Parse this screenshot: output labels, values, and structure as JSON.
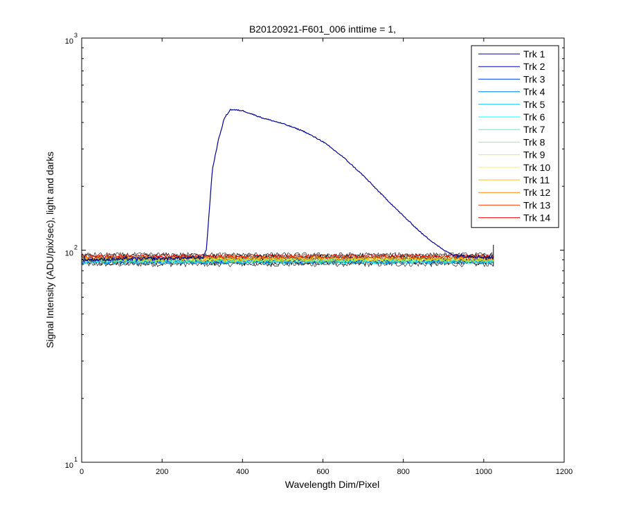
{
  "chart_data": {
    "type": "line",
    "title": "B20120921-F601_006 inttime = 1,",
    "xlabel": "Wavelength Dim/Pixel",
    "ylabel": "Signal Intensity (ADU/pix/sec), light and darks",
    "xlim": [
      0,
      1200
    ],
    "ylim": [
      10,
      1000
    ],
    "yscale": "log",
    "grid": false,
    "legend_position": "top-right",
    "x_ticks": [
      0,
      200,
      400,
      600,
      800,
      1000,
      1200
    ],
    "y_ticks": [
      {
        "value": 10,
        "base": "10",
        "exp": "1"
      },
      {
        "value": 100,
        "base": "10",
        "exp": "2"
      },
      {
        "value": 1000,
        "base": "10",
        "exp": "3"
      }
    ],
    "series": [
      {
        "name": "Trk 1",
        "color": "#00008f",
        "baseline": 90,
        "spread": 4,
        "peak": [
          [
            0,
            90
          ],
          [
            300,
            92
          ],
          [
            310,
            100
          ],
          [
            325,
            240
          ],
          [
            340,
            330
          ],
          [
            355,
            420
          ],
          [
            370,
            460
          ],
          [
            400,
            455
          ],
          [
            450,
            420
          ],
          [
            500,
            395
          ],
          [
            550,
            365
          ],
          [
            600,
            325
          ],
          [
            650,
            275
          ],
          [
            700,
            225
          ],
          [
            750,
            180
          ],
          [
            800,
            145
          ],
          [
            850,
            118
          ],
          [
            900,
            100
          ],
          [
            925,
            95
          ],
          [
            1024,
            92
          ]
        ]
      },
      {
        "name": "Trk 2",
        "color": "#0000c9",
        "baseline": 89,
        "spread": 4
      },
      {
        "name": "Trk 3",
        "color": "#0040ff",
        "baseline": 88.5,
        "spread": 4
      },
      {
        "name": "Trk 4",
        "color": "#0080ff",
        "baseline": 88,
        "spread": 4
      },
      {
        "name": "Trk 5",
        "color": "#00bfff",
        "baseline": 88,
        "spread": 4
      },
      {
        "name": "Trk 6",
        "color": "#00ffff",
        "baseline": 88.5,
        "spread": 4
      },
      {
        "name": "Trk 7",
        "color": "#40ffbf",
        "baseline": 89,
        "spread": 4
      },
      {
        "name": "Trk 8",
        "color": "#80ff80",
        "baseline": 89.5,
        "spread": 4
      },
      {
        "name": "Trk 9",
        "color": "#bfff40",
        "baseline": 90,
        "spread": 4
      },
      {
        "name": "Trk 10",
        "color": "#ffff00",
        "baseline": 90.5,
        "spread": 4
      },
      {
        "name": "Trk 11",
        "color": "#ffbf00",
        "baseline": 91,
        "spread": 4
      },
      {
        "name": "Trk 12",
        "color": "#ff8000",
        "baseline": 92,
        "spread": 4
      },
      {
        "name": "Trk 13",
        "color": "#ff4000",
        "baseline": 93,
        "spread": 4
      },
      {
        "name": "Trk 14",
        "color": "#ff0000",
        "baseline": 94,
        "spread": 4
      }
    ],
    "dark_traces": {
      "color": "#000000",
      "baseline_range": [
        86,
        95
      ],
      "spread": 5,
      "x_range": [
        0,
        1024
      ]
    }
  }
}
